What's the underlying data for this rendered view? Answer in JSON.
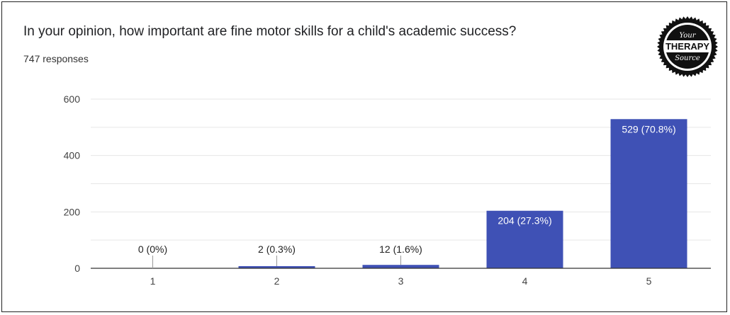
{
  "question": "In your opinion, how important are fine motor skills for a child's academic success?",
  "responses": "747 responses",
  "logo": {
    "line1": "Your",
    "line2": "THERAPY",
    "line3": "Source"
  },
  "colors": {
    "bar": "#3f51b5",
    "grid": "#e6e6e6",
    "axis": "#333333"
  },
  "chart_data": {
    "type": "bar",
    "title": "In your opinion, how important are fine motor skills for a child's academic success?",
    "categories": [
      "1",
      "2",
      "3",
      "4",
      "5"
    ],
    "values": [
      0,
      2,
      12,
      204,
      529
    ],
    "labels": [
      "0 (0%)",
      "2 (0.3%)",
      "12 (1.6%)",
      "204 (27.3%)",
      "529 (70.8%)"
    ],
    "ylim": [
      0,
      600
    ],
    "yticks": [
      0,
      200,
      400,
      600
    ],
    "grid": true,
    "xlabel": "",
    "ylabel": ""
  }
}
